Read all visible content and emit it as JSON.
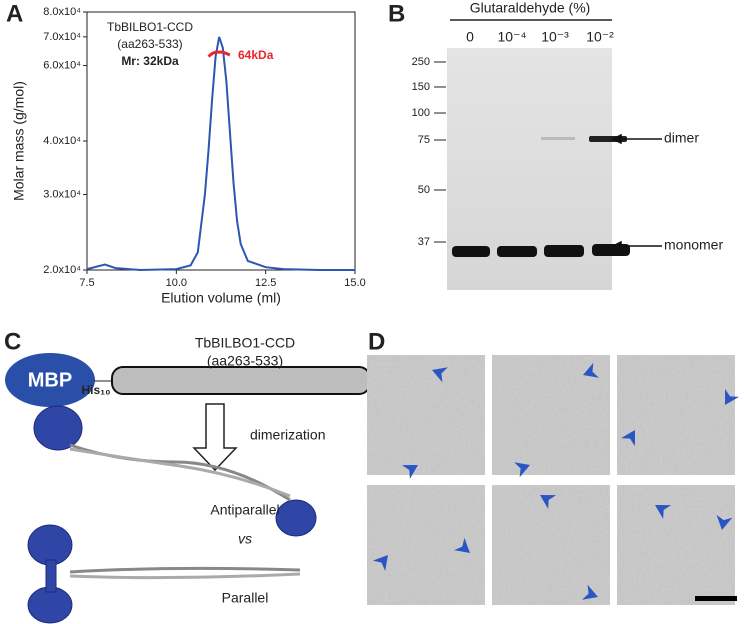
{
  "panel_labels": [
    "A",
    "B",
    "C",
    "D"
  ],
  "chart_data": {
    "type": "line",
    "log_y": true,
    "y_label": "Molar mass (g/mol)",
    "x_label": "Elution volume (ml)",
    "annotations": [
      "TbBILBO1-CCD",
      "(aa263-533)",
      "Mr: 32kDa",
      "64kDa"
    ],
    "xlim": [
      7.5,
      15
    ],
    "ylim": [
      20000,
      80000
    ],
    "xticks": [
      7.5,
      {
        "value": 10,
        "label": "10.0"
      },
      12.5,
      {
        "value": 15,
        "label": "15.0"
      }
    ],
    "yticks": [
      {
        "value": 20000,
        "label": "2.0x10⁴"
      },
      {
        "value": 30000,
        "label": "3.0x10⁴"
      },
      {
        "value": 40000,
        "label": "4.0x10⁴"
      },
      {
        "value": 60000,
        "label": "6.0x10⁴"
      },
      {
        "value": 70000,
        "label": "7.0x10⁴"
      },
      {
        "value": 80000,
        "label": "8.0x10⁴"
      }
    ],
    "series": [
      {
        "color": "#2b57b3",
        "x": [
          7.5,
          8.0,
          8.3,
          9.0,
          10.0,
          10.4,
          10.6,
          10.8,
          10.9,
          11.0,
          11.1,
          11.2,
          11.3,
          11.4,
          11.5,
          11.6,
          11.7,
          11.8,
          12.0,
          12.5,
          13.0,
          14.0,
          15.0
        ],
        "values": [
          20100,
          20600,
          20200,
          20000,
          20100,
          20500,
          22000,
          30000,
          38000,
          50000,
          63000,
          70000,
          66000,
          55000,
          42000,
          32000,
          26000,
          23000,
          21000,
          20300,
          20100,
          20000,
          20000
        ]
      },
      {
        "color": "#e8252b",
        "x": [
          10.9,
          11.0,
          11.1,
          11.2,
          11.3,
          11.4,
          11.5
        ],
        "values": [
          63000,
          64000,
          64500,
          64500,
          64500,
          64000,
          63500
        ]
      }
    ]
  },
  "gel": {
    "title": "Glutaraldehyde (%)",
    "lanes": [
      "0",
      "10⁻⁴",
      "10⁻³",
      "10⁻²"
    ],
    "markers": [
      "250",
      "150",
      "100",
      "75",
      "50",
      "37"
    ],
    "bands": [
      "dimer",
      "monomer"
    ]
  },
  "diagram": {
    "tag": "MBP",
    "linker": "His₁₀",
    "construct": "TbBILBO1-CCD",
    "range": "(aa263-533)",
    "step": "dimerization",
    "option1": "Antiparallel",
    "versus": "vs",
    "option2": "Parallel"
  }
}
